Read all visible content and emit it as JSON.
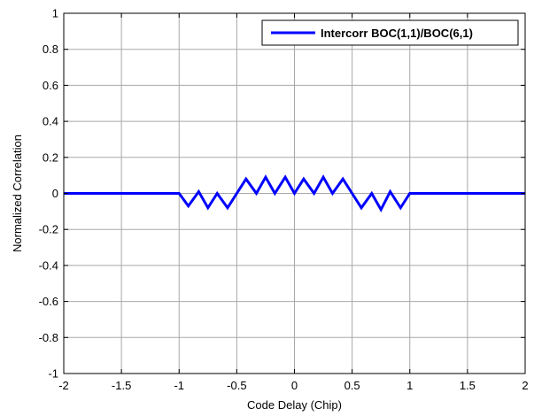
{
  "chart_data": {
    "type": "line",
    "xlabel": "Code Delay (Chip)",
    "ylabel": "Normalized Correlation",
    "xlim": [
      -2,
      2
    ],
    "ylim": [
      -1,
      1
    ],
    "x_ticks": [
      -2,
      -1.5,
      -1,
      -0.5,
      0,
      0.5,
      1,
      1.5,
      2
    ],
    "x_tick_labels": [
      "-2",
      "-1.5",
      "-1",
      "-0.5",
      "0",
      "0.5",
      "1",
      "1.5",
      "2"
    ],
    "y_ticks": [
      -1,
      -0.8,
      -0.6,
      -0.4,
      -0.2,
      0,
      0.2,
      0.4,
      0.6,
      0.8,
      1
    ],
    "y_tick_labels": [
      "-1",
      "-0.8",
      "-0.6",
      "-0.4",
      "-0.2",
      "0",
      "0.2",
      "0.4",
      "0.6",
      "0.8",
      "1"
    ],
    "grid": true,
    "legend_position": "top-right",
    "series": [
      {
        "name": "Intercorr BOC(1,1)/BOC(6,1)",
        "color": "#0000ff",
        "x": [
          -2,
          -1.0,
          -0.92,
          -0.83,
          -0.75,
          -0.67,
          -0.58,
          -0.5,
          -0.42,
          -0.33,
          -0.25,
          -0.17,
          -0.08,
          0.0,
          0.08,
          0.17,
          0.25,
          0.33,
          0.42,
          0.5,
          0.58,
          0.67,
          0.75,
          0.83,
          0.92,
          1.0,
          2
        ],
        "y": [
          0,
          0,
          -0.07,
          0.01,
          -0.08,
          0.0,
          -0.08,
          0.0,
          0.08,
          0.0,
          0.09,
          0.0,
          0.09,
          0.0,
          0.08,
          0.0,
          0.09,
          0.0,
          0.08,
          0.0,
          -0.08,
          0.0,
          -0.09,
          0.01,
          -0.08,
          0.0,
          0
        ]
      }
    ]
  }
}
